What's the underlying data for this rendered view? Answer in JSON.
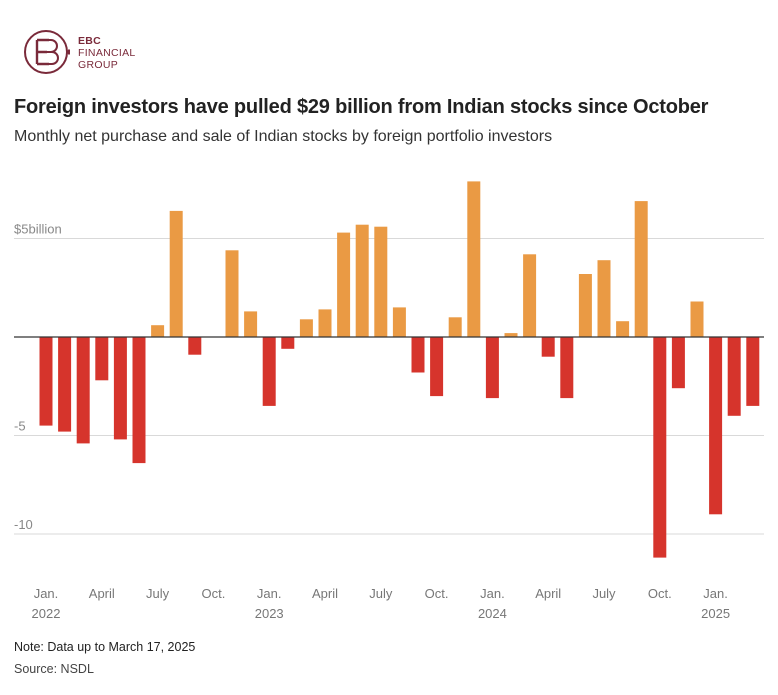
{
  "logo": {
    "line1": "EBC",
    "line2": "FINANCIAL",
    "line3": "GROUP",
    "color": "#7a2a3a"
  },
  "header": {
    "title": "Foreign investors have pulled $29 billion from Indian stocks since October",
    "subtitle": "Monthly net purchase and sale of Indian stocks by foreign portfolio investors"
  },
  "footer": {
    "note": "Note: Data up to March 17, 2025",
    "source": "Source: NSDL"
  },
  "chart_data": {
    "type": "bar",
    "title": "Foreign investors have pulled $29 billion from Indian stocks since October",
    "subtitle": "Monthly net purchase and sale of Indian stocks by foreign portfolio investors",
    "ylabel": "",
    "xlabel": "",
    "ylim": [
      -12,
      8
    ],
    "y_ticks": [
      {
        "value": 5,
        "label": "$5billion"
      },
      {
        "value": 0,
        "label": ""
      },
      {
        "value": -5,
        "label": "-5"
      },
      {
        "value": -10,
        "label": "-10"
      }
    ],
    "grid": true,
    "colors": {
      "positive": "#ea9a44",
      "negative": "#d6342c",
      "grid": "#d9d9d9",
      "axis": "#333333"
    },
    "categories": [
      "2022-01",
      "2022-02",
      "2022-03",
      "2022-04",
      "2022-05",
      "2022-06",
      "2022-07",
      "2022-08",
      "2022-09",
      "2022-10",
      "2022-11",
      "2022-12",
      "2023-01",
      "2023-02",
      "2023-03",
      "2023-04",
      "2023-05",
      "2023-06",
      "2023-07",
      "2023-08",
      "2023-09",
      "2023-10",
      "2023-11",
      "2023-12",
      "2024-01",
      "2024-02",
      "2024-03",
      "2024-04",
      "2024-05",
      "2024-06",
      "2024-07",
      "2024-08",
      "2024-09",
      "2024-10",
      "2024-11",
      "2024-12",
      "2025-01",
      "2025-02",
      "2025-03"
    ],
    "values": [
      -4.5,
      -4.8,
      -5.4,
      -2.2,
      -5.2,
      -6.4,
      0.6,
      6.4,
      -0.9,
      0.0,
      4.4,
      1.3,
      -3.5,
      -0.6,
      0.9,
      1.4,
      5.3,
      5.7,
      5.6,
      1.5,
      -1.8,
      -3.0,
      1.0,
      7.9,
      -3.1,
      0.2,
      4.2,
      -1.0,
      -3.1,
      3.2,
      3.9,
      0.8,
      6.9,
      -11.2,
      -2.6,
      1.8,
      -9.0,
      -4.0,
      -3.5
    ],
    "x_tick_labels": [
      {
        "index": 0,
        "month": "Jan.",
        "year": "2022"
      },
      {
        "index": 3,
        "month": "April",
        "year": ""
      },
      {
        "index": 6,
        "month": "July",
        "year": ""
      },
      {
        "index": 9,
        "month": "Oct.",
        "year": ""
      },
      {
        "index": 12,
        "month": "Jan.",
        "year": "2023"
      },
      {
        "index": 15,
        "month": "April",
        "year": ""
      },
      {
        "index": 18,
        "month": "July",
        "year": ""
      },
      {
        "index": 21,
        "month": "Oct.",
        "year": ""
      },
      {
        "index": 24,
        "month": "Jan.",
        "year": "2024"
      },
      {
        "index": 27,
        "month": "April",
        "year": ""
      },
      {
        "index": 30,
        "month": "July",
        "year": ""
      },
      {
        "index": 33,
        "month": "Oct.",
        "year": ""
      },
      {
        "index": 36,
        "month": "Jan.",
        "year": "2025"
      }
    ]
  }
}
